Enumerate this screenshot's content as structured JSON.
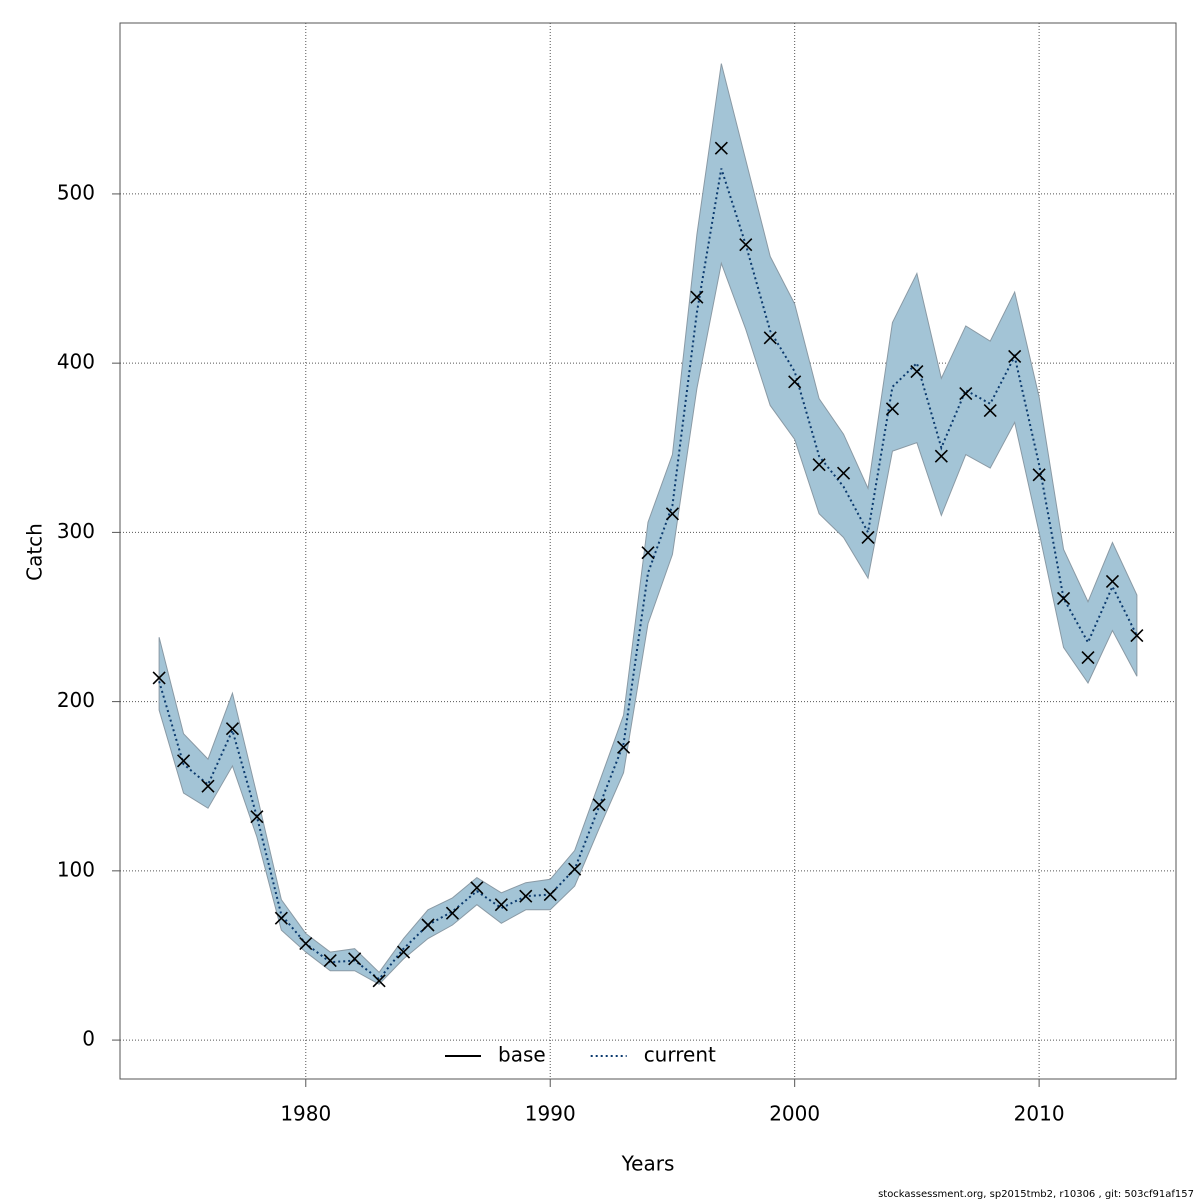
{
  "chart_data": {
    "type": "line",
    "x_label": "Years",
    "y_label": "Catch",
    "footer": "stockassessment.org, sp2015tmb2, r10306 , git: 503cf91af157",
    "x": [
      1974,
      1975,
      1976,
      1977,
      1978,
      1979,
      1980,
      1981,
      1982,
      1983,
      1984,
      1985,
      1986,
      1987,
      1988,
      1989,
      1990,
      1991,
      1992,
      1993,
      1994,
      1995,
      1996,
      1997,
      1998,
      1999,
      2000,
      2001,
      2002,
      2003,
      2004,
      2005,
      2006,
      2007,
      2008,
      2009,
      2010,
      2011,
      2012,
      2013,
      2014
    ],
    "observed": [
      214,
      165,
      150,
      184,
      132,
      72,
      57,
      47,
      48,
      35,
      52,
      68,
      75,
      90,
      80,
      85,
      86,
      101,
      139,
      173,
      288,
      311,
      439,
      527,
      470,
      415,
      389,
      340,
      335,
      297,
      373,
      395,
      345,
      382,
      372,
      404,
      334,
      261,
      226,
      271,
      239
    ],
    "series": [
      {
        "name": "base",
        "color": "#000000",
        "style": "solid"
      },
      {
        "name": "current",
        "color": "#0b3a6e",
        "style": "dotted",
        "values": [
          212,
          163,
          151,
          183,
          132,
          74,
          57,
          46,
          47,
          36,
          54,
          68,
          76,
          88,
          78,
          85,
          86,
          101,
          138,
          175,
          276,
          316,
          430,
          515,
          470,
          419,
          395,
          345,
          327,
          300,
          386,
          400,
          350,
          384,
          376,
          404,
          340,
          261,
          235,
          268,
          239
        ],
        "upper": [
          238,
          181,
          166,
          205,
          145,
          83,
          63,
          52,
          54,
          40,
          60,
          77,
          84,
          96,
          87,
          93,
          95,
          112,
          152,
          192,
          306,
          346,
          476,
          577,
          520,
          463,
          435,
          379,
          358,
          326,
          424,
          453,
          391,
          422,
          413,
          442,
          380,
          290,
          259,
          294,
          263
        ],
        "lower": [
          195,
          146,
          137,
          162,
          120,
          65,
          52,
          41,
          41,
          33,
          48,
          60,
          68,
          80,
          69,
          77,
          77,
          91,
          125,
          158,
          246,
          287,
          385,
          459,
          420,
          375,
          355,
          311,
          297,
          273,
          348,
          353,
          310,
          346,
          338,
          365,
          300,
          232,
          211,
          242,
          215
        ],
        "band_color": "#a3c4d6"
      }
    ],
    "xlim": [
      1972.4,
      2015.6
    ],
    "ylim": [
      -23,
      601
    ],
    "xticks": [
      1980,
      1990,
      2000,
      2010
    ],
    "yticks": [
      0,
      100,
      200,
      300,
      400,
      500
    ],
    "grid": true,
    "legend": "bottom"
  }
}
